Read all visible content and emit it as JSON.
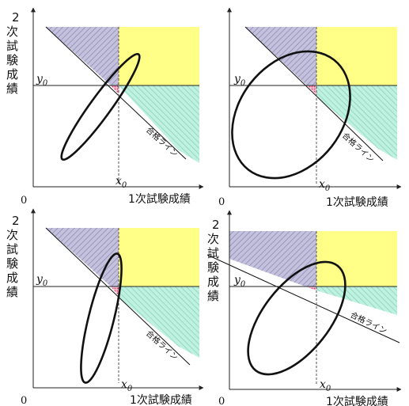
{
  "panels": [
    {
      "id": "top-left",
      "ylabel": [
        "2",
        "次",
        "試",
        "験",
        "成",
        "績"
      ],
      "xlabel": "1次試験成績",
      "origin": "0",
      "x0": "x",
      "y0": "y",
      "subscript": "0",
      "pass_line_label": "合格ライン"
    },
    {
      "id": "top-right",
      "ylabel": [],
      "xlabel": "1次試験成績",
      "origin": "0",
      "x0": "x",
      "y0": "y",
      "subscript": "0",
      "pass_line_label": "合格ライン"
    },
    {
      "id": "bottom-left",
      "ylabel": [
        "2",
        "次",
        "試",
        "験",
        "成",
        "績"
      ],
      "xlabel": "1次試験成績",
      "origin": "0",
      "x0": "x",
      "y0": "y",
      "subscript": "0",
      "pass_line_label": "合格ライン"
    },
    {
      "id": "bottom-right",
      "ylabel": [
        "2",
        "次",
        "試",
        "験",
        "成",
        "績"
      ],
      "xlabel": "1次試験成績",
      "origin": "0",
      "x0": "x",
      "y0": "y",
      "subscript": "0",
      "pass_line_label": "合格ライン"
    }
  ],
  "colors": {
    "yellow": "#ffff88",
    "teal": "#aee8d6",
    "purple": "#b7b4d4",
    "red": "#e0507a",
    "ink": "#111111",
    "dash": "#555555"
  }
}
